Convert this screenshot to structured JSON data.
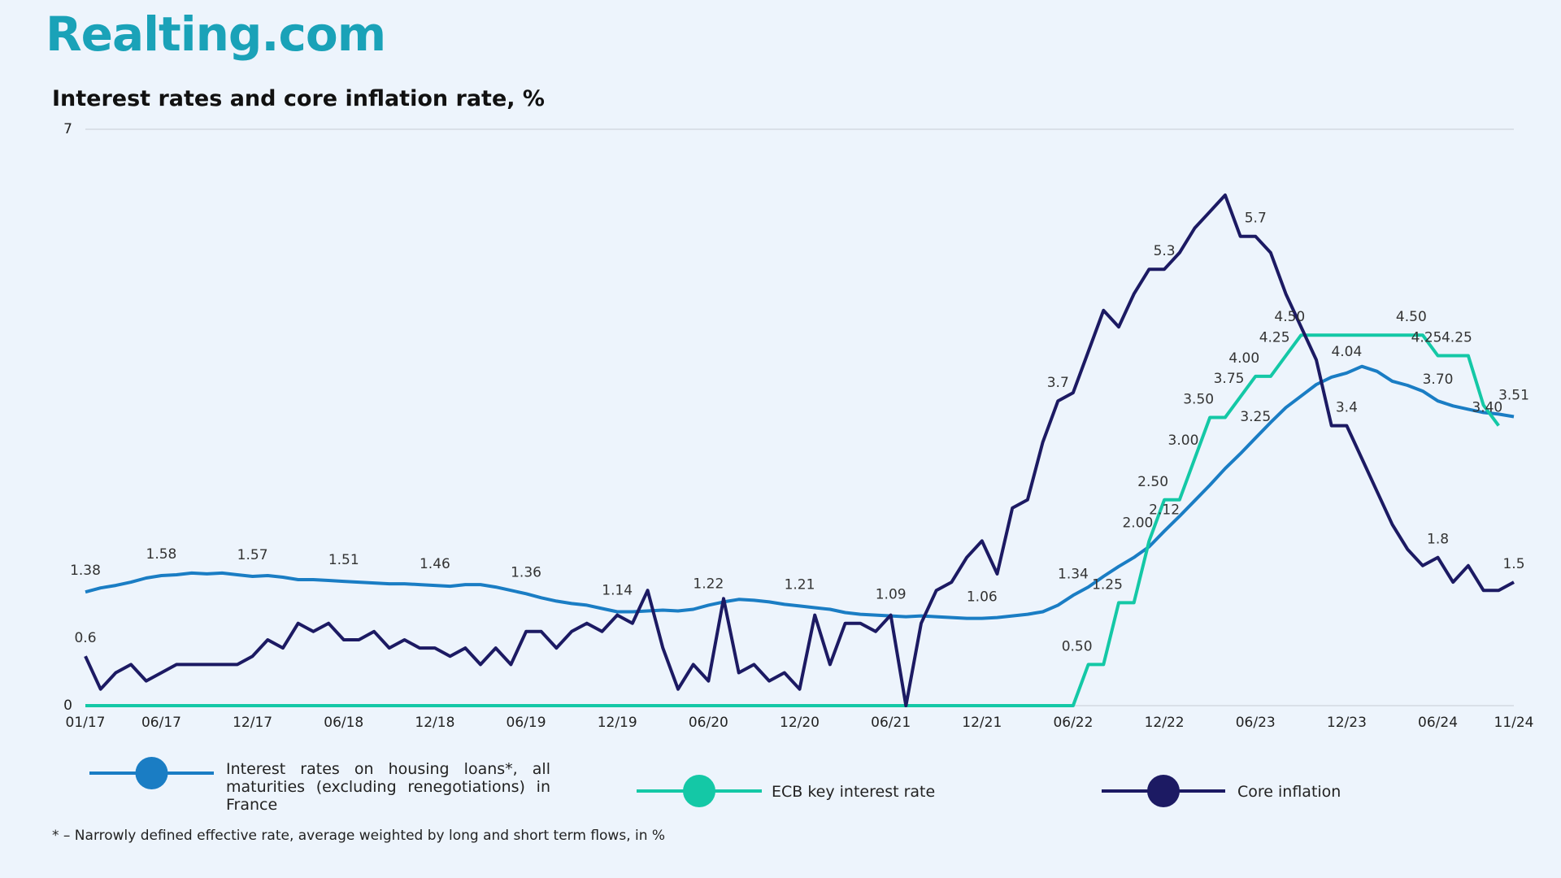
{
  "logo": "Realting.com",
  "chart_data": {
    "type": "line",
    "title": "Interest rates and core inflation rate, %",
    "footnote": "* – Narrowly defined effective rate, average weighted by long and short term flows, in %",
    "categories": [
      "01/17",
      null,
      null,
      null,
      null,
      "06/17",
      null,
      null,
      null,
      null,
      null,
      "12/17",
      null,
      null,
      null,
      null,
      null,
      "06/18",
      null,
      null,
      null,
      null,
      null,
      "12/18",
      null,
      null,
      null,
      null,
      null,
      "06/19",
      null,
      null,
      null,
      null,
      null,
      "12/19",
      null,
      null,
      null,
      null,
      null,
      "06/20",
      null,
      null,
      null,
      null,
      null,
      "12/20",
      null,
      null,
      null,
      null,
      null,
      "06/21",
      null,
      null,
      null,
      null,
      null,
      "12/21",
      null,
      null,
      null,
      null,
      null,
      "06/22",
      null,
      null,
      null,
      null,
      null,
      "12/22",
      null,
      null,
      null,
      null,
      null,
      "06/23",
      null,
      null,
      null,
      null,
      null,
      "12/23",
      null,
      null,
      null,
      null,
      null,
      "06/24",
      null,
      null,
      null,
      null,
      "11/24"
    ],
    "ylim": [
      0,
      7
    ],
    "yticks": [
      0,
      7
    ],
    "grid": true,
    "series": [
      {
        "name": "Interest rates on housing loans*, all maturities (excluding renegotiations) in France",
        "color": "#1a7dc4",
        "values": [
          1.38,
          1.43,
          1.46,
          1.5,
          1.55,
          1.58,
          1.59,
          1.61,
          1.6,
          1.61,
          1.59,
          1.57,
          1.58,
          1.56,
          1.53,
          1.53,
          1.52,
          1.51,
          1.5,
          1.49,
          1.48,
          1.48,
          1.47,
          1.46,
          1.45,
          1.47,
          1.47,
          1.44,
          1.4,
          1.36,
          1.31,
          1.27,
          1.24,
          1.22,
          1.18,
          1.14,
          1.14,
          1.15,
          1.16,
          1.15,
          1.17,
          1.22,
          1.26,
          1.29,
          1.28,
          1.26,
          1.23,
          1.21,
          1.19,
          1.17,
          1.13,
          1.11,
          1.1,
          1.09,
          1.08,
          1.09,
          1.08,
          1.07,
          1.06,
          1.06,
          1.07,
          1.09,
          1.11,
          1.14,
          1.22,
          1.34,
          1.44,
          1.57,
          1.69,
          1.8,
          1.93,
          2.12,
          2.3,
          2.49,
          2.68,
          2.88,
          3.06,
          3.25,
          3.44,
          3.62,
          3.76,
          3.9,
          3.99,
          4.04,
          4.12,
          4.06,
          3.94,
          3.89,
          3.82,
          3.7,
          3.64,
          3.6,
          3.56,
          3.54,
          3.51
        ],
        "value_labels": [
          "1.38",
          null,
          null,
          null,
          null,
          "1.58",
          null,
          null,
          null,
          null,
          null,
          "1.57",
          null,
          null,
          null,
          null,
          null,
          "1.51",
          null,
          null,
          null,
          null,
          null,
          "1.46",
          null,
          null,
          null,
          null,
          null,
          "1.36",
          null,
          null,
          null,
          null,
          null,
          "1.14",
          null,
          null,
          null,
          null,
          null,
          "1.22",
          null,
          null,
          null,
          null,
          null,
          "1.21",
          null,
          null,
          null,
          null,
          null,
          "1.09",
          null,
          null,
          null,
          null,
          null,
          "1.06",
          null,
          null,
          null,
          null,
          null,
          "1.34",
          null,
          null,
          null,
          null,
          null,
          "2.12",
          null,
          null,
          null,
          null,
          null,
          "3.25",
          null,
          null,
          null,
          null,
          null,
          "4.04",
          null,
          null,
          null,
          null,
          null,
          "3.70",
          null,
          null,
          null,
          null,
          "3.51"
        ]
      },
      {
        "name": "ECB key interest rate",
        "color": "#14c8a6",
        "values": [
          0,
          0,
          0,
          0,
          0,
          0,
          0,
          0,
          0,
          0,
          0,
          0,
          0,
          0,
          0,
          0,
          0,
          0,
          0,
          0,
          0,
          0,
          0,
          0,
          0,
          0,
          0,
          0,
          0,
          0,
          0,
          0,
          0,
          0,
          0,
          0,
          0,
          0,
          0,
          0,
          0,
          0,
          0,
          0,
          0,
          0,
          0,
          0,
          0,
          0,
          0,
          0,
          0,
          0,
          0,
          0,
          0,
          0,
          0,
          0,
          0,
          0,
          0,
          0,
          0,
          0,
          0.5,
          0.5,
          1.25,
          1.25,
          2.0,
          2.5,
          2.5,
          3.0,
          3.5,
          3.5,
          3.75,
          4.0,
          4.0,
          4.25,
          4.5,
          4.5,
          4.5,
          4.5,
          4.5,
          4.5,
          4.5,
          4.5,
          4.5,
          4.25,
          4.25,
          4.25,
          3.65,
          3.4,
          null
        ],
        "value_labels": [
          null,
          null,
          null,
          null,
          null,
          null,
          null,
          null,
          null,
          null,
          null,
          null,
          null,
          null,
          null,
          null,
          null,
          null,
          null,
          null,
          null,
          null,
          null,
          null,
          null,
          null,
          null,
          null,
          null,
          null,
          null,
          null,
          null,
          null,
          null,
          null,
          null,
          null,
          null,
          null,
          null,
          null,
          null,
          null,
          null,
          null,
          null,
          null,
          null,
          null,
          null,
          null,
          null,
          null,
          null,
          null,
          null,
          null,
          null,
          null,
          null,
          null,
          null,
          null,
          null,
          null,
          "0.50",
          null,
          "1.25",
          null,
          "2.00",
          "2.50",
          null,
          "3.00",
          "3.50",
          null,
          "3.75",
          "4.00",
          null,
          "4.25",
          "4.50",
          null,
          null,
          null,
          null,
          null,
          null,
          null,
          "4.50",
          "4.25",
          null,
          "4.25",
          null,
          "3.40",
          null
        ]
      },
      {
        "name": "Core inflation",
        "color": "#1c1a63",
        "values": [
          0.6,
          0.2,
          0.4,
          0.5,
          0.3,
          0.4,
          0.5,
          0.5,
          0.5,
          0.5,
          0.5,
          0.6,
          0.8,
          0.7,
          1.0,
          0.9,
          1.0,
          0.8,
          0.8,
          0.9,
          0.7,
          0.8,
          0.7,
          0.7,
          0.6,
          0.7,
          0.5,
          0.7,
          0.5,
          0.9,
          0.9,
          0.7,
          0.9,
          1.0,
          0.9,
          1.1,
          1.0,
          1.4,
          0.7,
          0.2,
          0.5,
          0.3,
          1.3,
          0.4,
          0.5,
          0.3,
          0.4,
          0.2,
          1.1,
          0.5,
          1.0,
          1.0,
          0.9,
          1.1,
          0.0,
          1.0,
          1.4,
          1.5,
          1.8,
          2.0,
          1.6,
          2.4,
          2.5,
          3.2,
          3.7,
          3.8,
          4.3,
          4.8,
          4.6,
          5.0,
          5.3,
          5.3,
          5.5,
          5.8,
          6.0,
          6.2,
          5.7,
          5.7,
          5.5,
          5.0,
          4.6,
          4.2,
          3.4,
          3.4,
          3.0,
          2.6,
          2.2,
          1.9,
          1.7,
          1.8,
          1.5,
          1.7,
          1.4,
          1.4,
          1.5
        ],
        "value_labels": [
          "0.6",
          null,
          null,
          null,
          null,
          null,
          null,
          null,
          null,
          null,
          null,
          null,
          null,
          null,
          null,
          null,
          null,
          null,
          null,
          null,
          null,
          null,
          null,
          null,
          null,
          null,
          null,
          null,
          null,
          null,
          null,
          null,
          null,
          null,
          null,
          null,
          null,
          null,
          null,
          null,
          null,
          null,
          null,
          null,
          null,
          null,
          null,
          null,
          null,
          null,
          null,
          null,
          null,
          null,
          null,
          null,
          null,
          null,
          null,
          null,
          null,
          null,
          null,
          null,
          "3.7",
          null,
          null,
          null,
          null,
          null,
          null,
          "5.3",
          null,
          null,
          null,
          null,
          null,
          "5.7",
          null,
          null,
          null,
          null,
          null,
          "3.4",
          null,
          null,
          null,
          null,
          null,
          "1.8",
          null,
          null,
          null,
          null,
          "1.5"
        ]
      }
    ]
  }
}
